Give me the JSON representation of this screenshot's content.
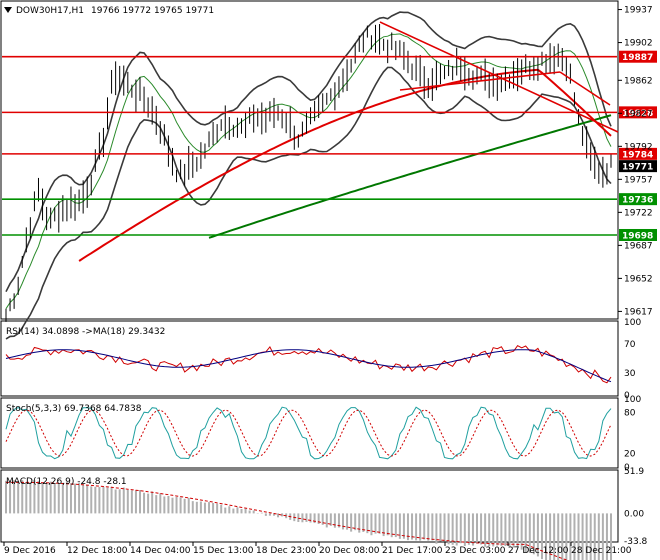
{
  "header": {
    "title": "DOW30H17,H1",
    "ohlc": "19766 19772 19765 19771",
    "symbol_icon": "triangle-down-icon"
  },
  "price_axis": {
    "ticks": [
      "19937",
      "19902",
      "19862",
      "19827",
      "19792",
      "19757",
      "19722",
      "19687",
      "19652",
      "19617"
    ],
    "tick_values": [
      19937,
      19902,
      19862,
      19827,
      19792,
      19757,
      19722,
      19687,
      19652,
      19617
    ],
    "ylim": [
      19610,
      19945
    ]
  },
  "levels": [
    {
      "value": 19887,
      "label": "19887",
      "color": "#e00000"
    },
    {
      "value": 19828,
      "label": "19828",
      "color": "#e00000"
    },
    {
      "value": 19784,
      "label": "19784",
      "color": "#e00000"
    },
    {
      "value": 19771,
      "label": "19771",
      "color": "#000000"
    },
    {
      "value": 19736,
      "label": "19736",
      "color": "#009000"
    },
    {
      "value": 19698,
      "label": "19698",
      "color": "#009000"
    }
  ],
  "rsi_panel": {
    "title": "RSI(14) 34.0898  ->MA(18) 29.3432",
    "ticks": [
      "100",
      "70",
      "30",
      "0"
    ],
    "tick_values": [
      100,
      70,
      30,
      0
    ]
  },
  "stoch_panel": {
    "title": "Stoch(5,3,3) 69.7368 64.7838",
    "ticks": [
      "100",
      "80",
      "20",
      "0"
    ],
    "tick_values": [
      100,
      80,
      20,
      0
    ]
  },
  "macd_panel": {
    "title": "MACD(12,26,9) -24.8 -28.1",
    "ticks": [
      "51.9",
      "0.00",
      "-33.8"
    ],
    "tick_values": [
      51.9,
      0,
      -33.8
    ]
  },
  "time_axis": {
    "labels": [
      "9 Dec 2016",
      "12 Dec 18:00",
      "14 Dec 04:00",
      "15 Dec 13:00",
      "18 Dec 23:00",
      "20 Dec 08:00",
      "21 Dec 17:00",
      "23 Dec 03:00",
      "27 Dec 12:00",
      "28 Dec 21:00"
    ]
  },
  "chart_data": {
    "type": "line",
    "close_series": [
      19613,
      19640,
      19700,
      19745,
      19710,
      19725,
      19730,
      19735,
      19760,
      19800,
      19870,
      19860,
      19850,
      19840,
      19820,
      19790,
      19760,
      19770,
      19780,
      19800,
      19820,
      19815,
      19810,
      19825,
      19820,
      19830,
      19820,
      19800,
      19815,
      19830,
      19845,
      19860,
      19880,
      19905,
      19910,
      19900,
      19895,
      19885,
      19870,
      19860,
      19865,
      19870,
      19880,
      19870,
      19865,
      19860,
      19862,
      19870,
      19875,
      19880,
      19885,
      19890,
      19880,
      19820,
      19780,
      19765,
      19771
    ],
    "colors": {
      "levels_red": "#e00000",
      "levels_green": "#009000",
      "ma_long": "#007700",
      "ma_mid": "#e00000",
      "bands": "#3a3a3a",
      "price": "#000000",
      "rsi_line": "#d00000",
      "rsi_ma": "#000080",
      "stoch_main": "#20a0a0",
      "stoch_signal": "#d00000",
      "macd_signal": "#d00000",
      "macd_hist": "#b0b0b0"
    }
  }
}
